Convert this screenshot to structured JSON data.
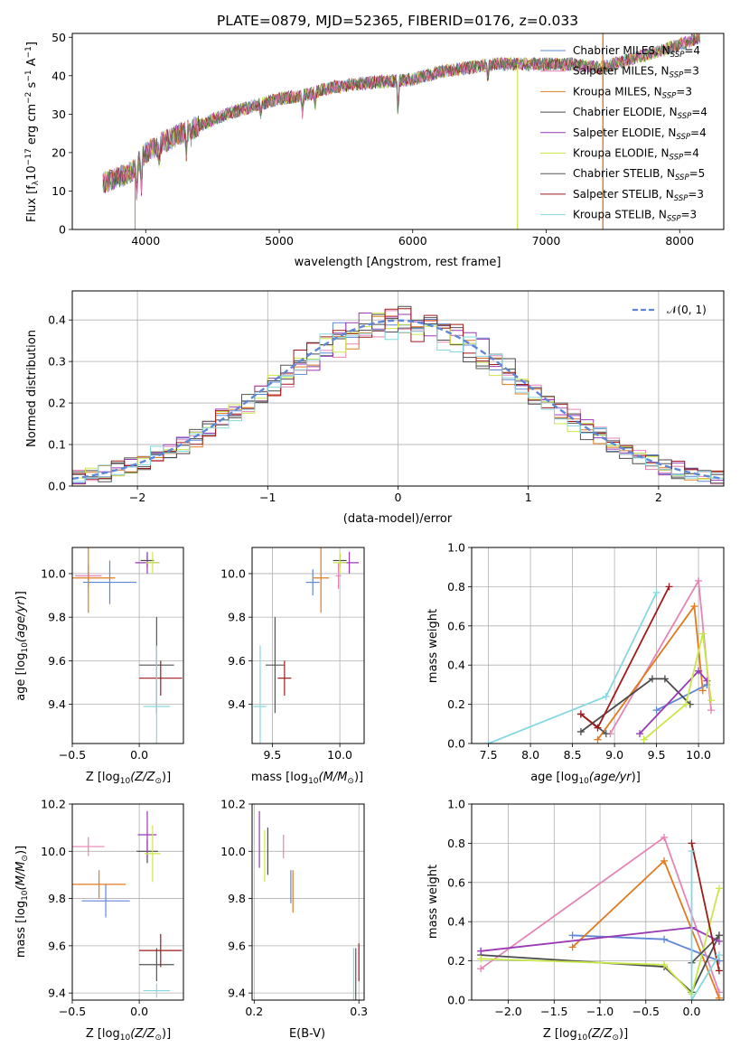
{
  "colors": [
    "#6b8fd6",
    "#e07b9f",
    "#cc8a1a",
    "#4f7f4f",
    "#9b30b8",
    "#d8e34a",
    "#555555",
    "#b01c1c",
    "#7fd3e0"
  ],
  "colors_line": [
    "#5f87d8",
    "#e685b5",
    "#e07b1f",
    "#4a4a4a",
    "#9a3ab5",
    "#c8e84a",
    "#555555",
    "#9e1b1b",
    "#86d8e0"
  ],
  "chart_data": [
    {
      "id": "spectrum",
      "type": "line",
      "title": "PLATE=0879, MJD=52365, FIBERID=0176, z=0.033",
      "xlabel": "wavelength [Angstrom, rest frame]",
      "ylabel": "Flux [f",
      "ylabel_tail": "10",
      "ylabel_exp": "−17",
      "ylabel_units": " erg cm",
      "xlim": [
        3450,
        8330
      ],
      "ylim": [
        0,
        51
      ],
      "xticks": [
        "4000",
        "5000",
        "6000",
        "7000",
        "8000"
      ],
      "xtick_values": [
        4000,
        5000,
        6000,
        7000,
        8000
      ],
      "yticks": [
        "0",
        "10",
        "20",
        "30",
        "40",
        "50"
      ],
      "ytick_values": [
        0,
        10,
        20,
        30,
        40,
        50
      ],
      "legend": [
        {
          "name": "Chabrier MILES, N",
          "sub": "SSP",
          "val": "=4"
        },
        {
          "name": "Salpeter MILES, N",
          "sub": "SSP",
          "val": "=3"
        },
        {
          "name": "Kroupa MILES, N",
          "sub": "SSP",
          "val": "=3"
        },
        {
          "name": "Chabrier ELODIE, N",
          "sub": "SSP",
          "val": "=4"
        },
        {
          "name": "Salpeter ELODIE, N",
          "sub": "SSP",
          "val": "=4"
        },
        {
          "name": "Kroupa ELODIE, N",
          "sub": "SSP",
          "val": "=4"
        },
        {
          "name": "Chabrier STELIB, N",
          "sub": "SSP",
          "val": "=5"
        },
        {
          "name": "Salpeter STELIB, N",
          "sub": "SSP",
          "val": "=3"
        },
        {
          "name": "Kroupa STELIB, N",
          "sub": "SSP",
          "val": "=3"
        }
      ],
      "continuum": [
        [
          3680,
          12
        ],
        [
          3900,
          15
        ],
        [
          4000,
          20
        ],
        [
          4200,
          24
        ],
        [
          4400,
          27
        ],
        [
          4600,
          30
        ],
        [
          4800,
          32
        ],
        [
          5000,
          34
        ],
        [
          5200,
          35
        ],
        [
          5400,
          37
        ],
        [
          5600,
          38
        ],
        [
          5800,
          38.5
        ],
        [
          6000,
          39
        ],
        [
          6200,
          41
        ],
        [
          6400,
          42
        ],
        [
          6600,
          43
        ],
        [
          6800,
          43
        ],
        [
          7000,
          43
        ],
        [
          7200,
          43
        ],
        [
          7400,
          42
        ],
        [
          7600,
          44
        ],
        [
          7800,
          46
        ],
        [
          8000,
          48
        ],
        [
          8150,
          50
        ]
      ],
      "grid": false
    },
    {
      "id": "residuals",
      "type": "histogram",
      "xlabel": "(data-model)/error",
      "ylabel": "Normed distribution",
      "xlim": [
        -2.5,
        2.5
      ],
      "ylim": [
        0,
        0.47
      ],
      "xticks": [
        "−2",
        "−1",
        "0",
        "1",
        "2"
      ],
      "xtick_values": [
        -2,
        -1,
        0,
        1,
        2
      ],
      "yticks": [
        "0.0",
        "0.1",
        "0.2",
        "0.3",
        "0.4"
      ],
      "ytick_values": [
        0,
        0.1,
        0.2,
        0.3,
        0.4
      ],
      "legend": [
        "𝒩(0, 1)"
      ],
      "grid": true
    },
    {
      "id": "z-age",
      "type": "errorbar",
      "xlabel": "Z [log",
      "xlabel_sub": "10",
      "xlabel_tail": "(Z/Z",
      "ylabel": "age  [log",
      "xlim": [
        -0.5,
        0.33
      ],
      "ylim": [
        9.22,
        10.12
      ],
      "xticks": [
        "−0.5",
        "0.0"
      ],
      "xtick_values": [
        -0.5,
        0.0
      ],
      "yticks": [
        "9.4",
        "9.6",
        "9.8",
        "10.0"
      ],
      "ytick_values": [
        9.4,
        9.6,
        9.8,
        10.0
      ],
      "points": [
        {
          "x": -0.22,
          "y": 9.96,
          "xerr": 0.2,
          "yerr": 0.1
        },
        {
          "x": -0.38,
          "y": 9.99,
          "xerr": 0.1,
          "yerr": 0.05
        },
        {
          "x": -0.38,
          "y": 9.98,
          "xerr": 0.2,
          "yerr": 0.16
        },
        {
          "x": 0.06,
          "y": 10.06,
          "xerr": 0.05,
          "yerr": 0.03
        },
        {
          "x": 0.06,
          "y": 10.05,
          "xerr": 0.09,
          "yerr": 0.05
        },
        {
          "x": 0.1,
          "y": 10.05,
          "xerr": 0.05,
          "yerr": 0.05
        },
        {
          "x": 0.13,
          "y": 9.58,
          "xerr": 0.13,
          "yerr": 0.22
        },
        {
          "x": 0.16,
          "y": 9.52,
          "xerr": 0.16,
          "yerr": 0.08
        },
        {
          "x": 0.13,
          "y": 9.39,
          "xerr": 0.1,
          "yerr": 0.28
        }
      ],
      "grid": true
    },
    {
      "id": "mass-age",
      "type": "errorbar",
      "xlabel": "mass [log",
      "xlim": [
        9.35,
        10.18
      ],
      "ylim": [
        9.22,
        10.12
      ],
      "xticks": [
        "9.5",
        "10.0"
      ],
      "xtick_values": [
        9.5,
        10.0
      ],
      "points": [
        {
          "x": 9.8,
          "y": 9.96,
          "xerr": 0.05,
          "yerr": 0.06
        },
        {
          "x": 9.99,
          "y": 9.99,
          "xerr": 0.02,
          "yerr": 0.06
        },
        {
          "x": 9.86,
          "y": 9.98,
          "xerr": 0.06,
          "yerr": 0.16
        },
        {
          "x": 10.0,
          "y": 10.06,
          "xerr": 0.05,
          "yerr": 0.03
        },
        {
          "x": 10.07,
          "y": 10.05,
          "xerr": 0.07,
          "yerr": 0.05
        },
        {
          "x": 10.0,
          "y": 10.05,
          "xerr": 0.05,
          "yerr": 0.05
        },
        {
          "x": 9.52,
          "y": 9.58,
          "xerr": 0.07,
          "yerr": 0.22
        },
        {
          "x": 9.59,
          "y": 9.52,
          "xerr": 0.05,
          "yerr": 0.08
        },
        {
          "x": 9.41,
          "y": 9.39,
          "xerr": 0.05,
          "yerr": 0.28
        }
      ],
      "grid": true
    },
    {
      "id": "age-weight",
      "type": "line",
      "xlabel": "age  [log",
      "ylabel": "mass weight",
      "xlim": [
        7.3,
        10.3
      ],
      "ylim": [
        0,
        1
      ],
      "xticks": [
        "7.5",
        "8.0",
        "8.5",
        "9.0",
        "9.5",
        "10.0"
      ],
      "xtick_values": [
        7.5,
        8.0,
        8.5,
        9.0,
        9.5,
        10.0
      ],
      "yticks": [
        "0.0",
        "0.2",
        "0.4",
        "0.6",
        "0.8",
        "1.0"
      ],
      "ytick_values": [
        0,
        0.2,
        0.4,
        0.6,
        0.8,
        1.0
      ],
      "series": [
        {
          "x": [
            9.5,
            10.1
          ],
          "y": [
            0.17,
            0.3
          ]
        },
        {
          "x": [
            8.95,
            10.0,
            10.15
          ],
          "y": [
            0.05,
            0.83,
            0.17
          ]
        },
        {
          "x": [
            8.8,
            9.95,
            10.05
          ],
          "y": [
            0.02,
            0.7,
            0.27
          ]
        },
        {
          "x": [
            8.6,
            9.45,
            9.6,
            9.9
          ],
          "y": [
            0.06,
            0.33,
            0.33,
            0.2
          ]
        },
        {
          "x": [
            9.3,
            10.0,
            10.1
          ],
          "y": [
            0.05,
            0.37,
            0.32
          ]
        },
        {
          "x": [
            9.35,
            9.85,
            10.05,
            10.15
          ],
          "y": [
            0.02,
            0.2,
            0.56,
            0.22
          ]
        },
        {
          "x": [
            8.6,
            8.9
          ],
          "y": [
            0.15,
            0.05
          ]
        },
        {
          "x": [
            8.6,
            8.8,
            9.65
          ],
          "y": [
            0.15,
            0.08,
            0.8
          ]
        },
        {
          "x": [
            7.5,
            8.9,
            9.5
          ],
          "y": [
            0.0,
            0.24,
            0.77
          ]
        }
      ],
      "grid": true
    },
    {
      "id": "z-mass",
      "type": "errorbar",
      "xlabel": "Z [log",
      "ylabel": "mass [log",
      "xlim": [
        -0.5,
        0.33
      ],
      "ylim": [
        9.37,
        10.2
      ],
      "xticks": [
        "−0.5",
        "0.0"
      ],
      "xtick_values": [
        -0.5,
        0.0
      ],
      "yticks": [
        "9.4",
        "9.6",
        "9.8",
        "10.0",
        "10.2"
      ],
      "ytick_values": [
        9.4,
        9.6,
        9.8,
        10.0,
        10.2
      ],
      "points": [
        {
          "x": -0.25,
          "y": 9.79,
          "xerr": 0.18,
          "yerr": 0.07
        },
        {
          "x": -0.38,
          "y": 10.02,
          "xerr": 0.12,
          "yerr": 0.04
        },
        {
          "x": -0.3,
          "y": 9.86,
          "xerr": 0.2,
          "yerr": 0.06
        },
        {
          "x": 0.06,
          "y": 10.0,
          "xerr": 0.08,
          "yerr": 0.05
        },
        {
          "x": 0.06,
          "y": 10.07,
          "xerr": 0.07,
          "yerr": 0.1
        },
        {
          "x": 0.1,
          "y": 9.99,
          "xerr": 0.06,
          "yerr": 0.12
        },
        {
          "x": 0.13,
          "y": 9.52,
          "xerr": 0.13,
          "yerr": 0.07
        },
        {
          "x": 0.16,
          "y": 9.58,
          "xerr": 0.16,
          "yerr": 0.07
        },
        {
          "x": 0.13,
          "y": 9.41,
          "xerr": 0.1,
          "yerr": 0.03
        }
      ],
      "grid": true
    },
    {
      "id": "ebv-mass",
      "type": "errorbar",
      "xlabel": "E(B-V)",
      "xlim": [
        0.198,
        0.305
      ],
      "ylim": [
        9.37,
        10.2
      ],
      "xticks": [
        "0.2",
        "0.3"
      ],
      "xtick_values": [
        0.2,
        0.3
      ],
      "points": [
        {
          "x": 0.235,
          "y": 9.85,
          "xerr": 0.0,
          "yerr": 0.07
        },
        {
          "x": 0.228,
          "y": 10.02,
          "xerr": 0.0,
          "yerr": 0.05
        },
        {
          "x": 0.237,
          "y": 9.83,
          "xerr": 0.0,
          "yerr": 0.09
        },
        {
          "x": 0.213,
          "y": 10.0,
          "xerr": 0.0,
          "yerr": 0.1
        },
        {
          "x": 0.205,
          "y": 10.05,
          "xerr": 0.0,
          "yerr": 0.12
        },
        {
          "x": 0.21,
          "y": 9.98,
          "xerr": 0.0,
          "yerr": 0.11
        },
        {
          "x": 0.297,
          "y": 9.47,
          "xerr": 0.0,
          "yerr": 0.12
        },
        {
          "x": 0.3,
          "y": 9.53,
          "xerr": 0.0,
          "yerr": 0.08
        },
        {
          "x": 0.295,
          "y": 9.47,
          "xerr": 0.0,
          "yerr": 0.12
        }
      ],
      "grid": true
    },
    {
      "id": "z-weight",
      "type": "line",
      "xlabel": "Z [log",
      "ylabel": "mass weight",
      "xlim": [
        -2.4,
        0.35
      ],
      "ylim": [
        0,
        1
      ],
      "xticks": [
        "−2.0",
        "−1.5",
        "−1.0",
        "−0.5",
        "0.0"
      ],
      "xtick_values": [
        -2.0,
        -1.5,
        -1.0,
        -0.5,
        0.0
      ],
      "yticks": [
        "0.0",
        "0.2",
        "0.4",
        "0.6",
        "0.8",
        "1.0"
      ],
      "ytick_values": [
        0,
        0.2,
        0.4,
        0.6,
        0.8,
        1.0
      ],
      "series": [
        {
          "x": [
            -1.3,
            -0.3,
            0.3
          ],
          "y": [
            0.33,
            0.31,
            0.2
          ]
        },
        {
          "x": [
            -2.3,
            -0.3,
            0.3
          ],
          "y": [
            0.16,
            0.83,
            0.04
          ]
        },
        {
          "x": [
            -1.3,
            -0.3,
            0.3
          ],
          "y": [
            0.27,
            0.71,
            0.01
          ]
        },
        {
          "x": [
            -2.3,
            -0.3,
            0.0,
            0.3
          ],
          "y": [
            0.23,
            0.17,
            0.04,
            0.33
          ]
        },
        {
          "x": [
            -2.3,
            0.0,
            0.3
          ],
          "y": [
            0.25,
            0.37,
            0.3
          ]
        },
        {
          "x": [
            -2.3,
            -0.3,
            0.0,
            0.3
          ],
          "y": [
            0.21,
            0.18,
            0.03,
            0.57
          ]
        },
        {
          "x": [
            0.0,
            0.3
          ],
          "y": [
            0.19,
            0.33
          ]
        },
        {
          "x": [
            0.0,
            0.3
          ],
          "y": [
            0.8,
            0.15
          ]
        },
        {
          "x": [
            0.0,
            0.0,
            0.3
          ],
          "y": [
            0.76,
            0.0,
            0.23
          ]
        }
      ],
      "grid": true
    }
  ]
}
